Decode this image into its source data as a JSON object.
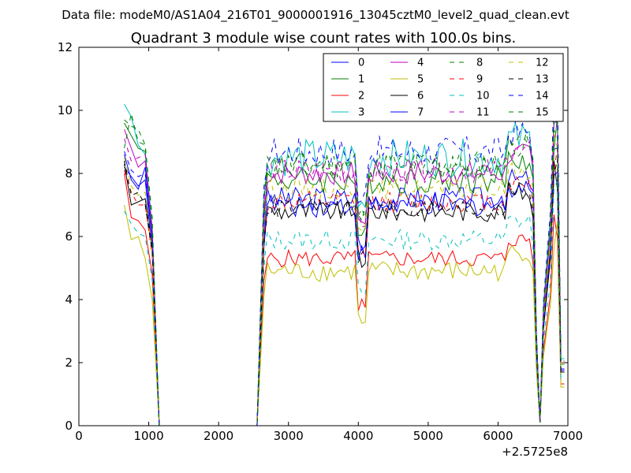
{
  "chart_data": {
    "type": "line",
    "suptitle": "Data file: modeM0/AS1A04_216T01_9000001916_13045cztM0_level2_quad_clean.evt",
    "title": "Quadrant 3 module wise count rates with 100.0s bins.",
    "xlabel": "",
    "ylabel": "",
    "x_offset_label": "+2.5725e8",
    "xlim": [
      0,
      7000
    ],
    "ylim": [
      0,
      12
    ],
    "x_ticks": [
      0,
      1000,
      2000,
      3000,
      4000,
      5000,
      6000,
      7000
    ],
    "x_tick_labels": [
      "0",
      "1000",
      "2000",
      "3000",
      "4000",
      "5000",
      "6000",
      "7000"
    ],
    "y_ticks": [
      0,
      2,
      4,
      6,
      8,
      10,
      12
    ],
    "y_tick_labels": [
      "0",
      "2",
      "4",
      "6",
      "8",
      "10",
      "12"
    ],
    "legend_position": "top-right",
    "x_first_segment": [
      650,
      750,
      850,
      950,
      1050,
      1150
    ],
    "gap_segment": {
      "x": [
        1150,
        2550
      ],
      "value": 0
    },
    "x_second_segment_start": 2550,
    "x_second_segment_step": 50,
    "x_second_segment_end": 6950,
    "dip_times": [
      2550,
      4050,
      6600
    ],
    "series": [
      {
        "name": "0",
        "color": "#0000ff",
        "dash": "solid",
        "first": [
          8.2,
          7.9,
          7.6,
          7.8,
          5.5,
          0
        ],
        "base": 7.2,
        "amp": 0.35
      },
      {
        "name": "1",
        "color": "#008000",
        "dash": "solid",
        "first": [
          9.6,
          9.2,
          8.8,
          8.7,
          6.2,
          0
        ],
        "base": 7.8,
        "amp": 0.4
      },
      {
        "name": "2",
        "color": "#ff0000",
        "dash": "solid",
        "first": [
          8.0,
          6.6,
          6.5,
          6.2,
          4.8,
          0
        ],
        "base": 5.3,
        "amp": 0.25
      },
      {
        "name": "3",
        "color": "#00bfbf",
        "dash": "solid",
        "first": [
          10.2,
          9.8,
          8.9,
          8.6,
          6.3,
          0
        ],
        "base": 8.5,
        "amp": 0.55
      },
      {
        "name": "4",
        "color": "#bf00bf",
        "dash": "solid",
        "first": [
          9.4,
          8.8,
          8.2,
          8.4,
          6.0,
          0
        ],
        "base": 8.0,
        "amp": 0.35
      },
      {
        "name": "5",
        "color": "#bfbf00",
        "dash": "solid",
        "first": [
          7.0,
          5.9,
          6.0,
          5.3,
          4.0,
          0
        ],
        "base": 4.9,
        "amp": 0.3
      },
      {
        "name": "6",
        "color": "#000000",
        "dash": "solid",
        "first": [
          8.3,
          7.0,
          7.1,
          7.2,
          5.6,
          0
        ],
        "base": 6.8,
        "amp": 0.3
      },
      {
        "name": "7",
        "color": "#0000ff",
        "dash": "solid",
        "first": [
          8.6,
          7.8,
          7.5,
          8.2,
          5.8,
          0
        ],
        "base": 7.0,
        "amp": 0.35
      },
      {
        "name": "8",
        "color": "#008000",
        "dash": "dashed",
        "first": [
          8.8,
          9.9,
          9.0,
          8.9,
          6.4,
          0
        ],
        "base": 8.3,
        "amp": 0.4
      },
      {
        "name": "9",
        "color": "#ff0000",
        "dash": "dashed",
        "first": [
          8.1,
          7.4,
          7.0,
          7.0,
          5.4,
          0
        ],
        "base": 7.1,
        "amp": 0.3
      },
      {
        "name": "10",
        "color": "#00bfbf",
        "dash": "dashed",
        "first": [
          6.8,
          6.4,
          6.1,
          6.0,
          4.6,
          0
        ],
        "base": 5.9,
        "amp": 0.3
      },
      {
        "name": "11",
        "color": "#bf00bf",
        "dash": "dashed",
        "first": [
          9.1,
          8.4,
          8.5,
          8.6,
          6.2,
          0
        ],
        "base": 8.1,
        "amp": 0.35
      },
      {
        "name": "12",
        "color": "#bfbf00",
        "dash": "dashed",
        "first": [
          8.5,
          7.6,
          7.3,
          7.4,
          5.5,
          0
        ],
        "base": 7.5,
        "amp": 0.3
      },
      {
        "name": "13",
        "color": "#000000",
        "dash": "dashed",
        "first": [
          8.4,
          7.3,
          7.4,
          7.0,
          5.5,
          0
        ],
        "base": 6.9,
        "amp": 0.3
      },
      {
        "name": "14",
        "color": "#0000ff",
        "dash": "dashed",
        "first": [
          8.7,
          8.1,
          7.9,
          8.0,
          5.9,
          0
        ],
        "base": 8.7,
        "amp": 0.45
      },
      {
        "name": "15",
        "color": "#008000",
        "dash": "dashed",
        "first": [
          9.7,
          9.5,
          9.4,
          8.9,
          6.6,
          0
        ],
        "base": 8.2,
        "amp": 0.4
      }
    ]
  }
}
